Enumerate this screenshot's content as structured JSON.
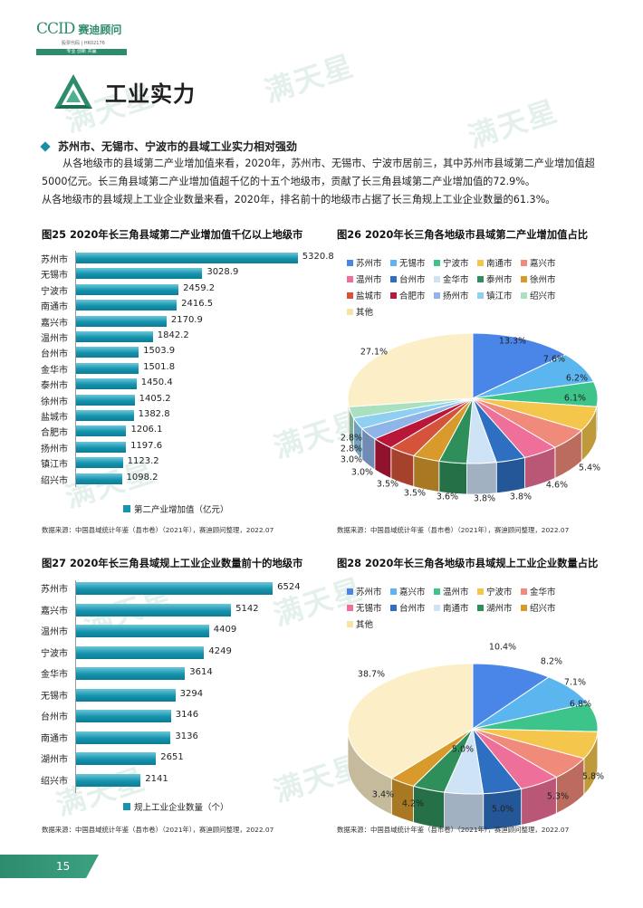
{
  "header": {
    "logo_en": "CCID",
    "logo_cn": "赛迪顾问",
    "logo_sub": "股票代码 | HK02176",
    "logo_tag": "专业 创新 共赢"
  },
  "watermark": "满天星",
  "section": {
    "title": "工业实力"
  },
  "subhead": "苏州市、无锡市、宁波市的县域工业实力相对强劲",
  "paragraphs": [
    "从各地级市的县域第二产业增加值来看，2020年，苏州市、无锡市、宁波市居前三，其中苏州市县域第二产业增加值超5000亿元。长三角县域第二产业增加值超千亿的十五个地级市，贡献了长三角县域第二产业增加值的72.9%。",
    "从各地级市的县域规上工业企业数量来看，2020年，排名前十的地级市占据了长三角规上工业企业数量的61.3%。"
  ],
  "fig25": {
    "title": "图25  2020年长三角县域第二产业增加值千亿以上地级市",
    "source": "数据来源：中国县域统计年鉴（县市卷）（2021年），赛迪顾问整理，2022.07",
    "chart_data": {
      "type": "bar",
      "orientation": "horizontal",
      "categories": [
        "苏州市",
        "无锡市",
        "宁波市",
        "南通市",
        "嘉兴市",
        "温州市",
        "台州市",
        "金华市",
        "泰州市",
        "徐州市",
        "盐城市",
        "合肥市",
        "扬州市",
        "镇江市",
        "绍兴市"
      ],
      "values": [
        "5320.8",
        "3028.9",
        "2459.2",
        "2416.5",
        "2170.9",
        "1842.2",
        "1503.9",
        "1501.8",
        "1450.4",
        "1405.2",
        "1382.8",
        "1206.1",
        "1197.6",
        "1123.2",
        "1098.2"
      ],
      "series_name": "第二产业增加值（亿元）",
      "xlim": [
        0,
        5500
      ]
    }
  },
  "fig26": {
    "title": "图26  2020年长三角各地级市县域第二产业增加值占比",
    "source": "数据来源：中国县域统计年鉴（县市卷）（2021年），赛迪顾问整理，2022.07",
    "chart_data": {
      "type": "pie",
      "style": "3d",
      "slices": [
        {
          "name": "苏州市",
          "value": 13.3,
          "label": "13.3%",
          "color": "#4a86e8"
        },
        {
          "name": "无锡市",
          "value": 7.6,
          "label": "7.6%",
          "color": "#5bb5ee"
        },
        {
          "name": "宁波市",
          "value": 6.2,
          "label": "6.2%",
          "color": "#3cc48a"
        },
        {
          "name": "南通市",
          "value": 6.1,
          "label": "6.1%",
          "color": "#f5c64c"
        },
        {
          "name": "嘉兴市",
          "value": 5.4,
          "label": "5.4%",
          "color": "#f08a7a"
        },
        {
          "name": "温州市",
          "value": 4.6,
          "label": "4.6%",
          "color": "#ee6f99"
        },
        {
          "name": "台州市",
          "value": 3.8,
          "label": "3.8%",
          "color": "#2e6fc2"
        },
        {
          "name": "金华市",
          "value": 3.8,
          "label": "3.8%",
          "color": "#cfe3f7"
        },
        {
          "name": "泰州市",
          "value": 3.6,
          "label": "3.6%",
          "color": "#2f8f5a"
        },
        {
          "name": "徐州市",
          "value": 3.5,
          "label": "3.5%",
          "color": "#d89a2b"
        },
        {
          "name": "盐城市",
          "value": 3.5,
          "label": "3.5%",
          "color": "#d5533a"
        },
        {
          "name": "合肥市",
          "value": 3.0,
          "label": "3.0%",
          "color": "#b8173a"
        },
        {
          "name": "扬州市",
          "value": 3.0,
          "label": "3.0%",
          "color": "#8fb4e8"
        },
        {
          "name": "镇江市",
          "value": 2.8,
          "label": "2.8%",
          "color": "#8fd0f2"
        },
        {
          "name": "绍兴市",
          "value": 2.8,
          "label": "2.8%",
          "color": "#a8e0c0"
        },
        {
          "name": "其他",
          "value": 27.1,
          "label": "27.1%",
          "color": "#fcefc8"
        }
      ]
    }
  },
  "fig27": {
    "title": "图27  2020年长三角县域规上工业企业数量前十的地级市",
    "source": "数据来源：中国县域统计年鉴（县市卷）（2021年），赛迪顾问整理，2022.07",
    "chart_data": {
      "type": "bar",
      "orientation": "horizontal",
      "categories": [
        "苏州市",
        "嘉兴市",
        "温州市",
        "宁波市",
        "金华市",
        "无锡市",
        "台州市",
        "南通市",
        "湖州市",
        "绍兴市"
      ],
      "values": [
        "6524",
        "5142",
        "4409",
        "4249",
        "3614",
        "3294",
        "3146",
        "3136",
        "2651",
        "2141"
      ],
      "series_name": "规上工业企业数量（个）",
      "xlim": [
        0,
        7000
      ]
    }
  },
  "fig28": {
    "title": "图28  2020年长三角各地级市县域规上工业企业数量占比",
    "source": "数据来源：中国县域统计年鉴（县市卷）（2021年），赛迪顾问整理，2022.07",
    "chart_data": {
      "type": "pie",
      "style": "3d",
      "slices": [
        {
          "name": "苏州市",
          "value": 10.4,
          "label": "10.4%",
          "color": "#4a86e8"
        },
        {
          "name": "嘉兴市",
          "value": 8.2,
          "label": "8.2%",
          "color": "#5bb5ee"
        },
        {
          "name": "温州市",
          "value": 7.1,
          "label": "7.1%",
          "color": "#3cc48a"
        },
        {
          "name": "宁波市",
          "value": 6.8,
          "label": "6.8%",
          "color": "#f5c64c"
        },
        {
          "name": "金华市",
          "value": 5.8,
          "label": "5.8%",
          "color": "#f08a7a"
        },
        {
          "name": "无锡市",
          "value": 5.3,
          "label": "5.3%",
          "color": "#ee6f99"
        },
        {
          "name": "台州市",
          "value": 5.0,
          "label": "5.0%",
          "color": "#2e6fc2"
        },
        {
          "name": "南通市",
          "value": 5.0,
          "label": "5.0%",
          "color": "#cfe3f7"
        },
        {
          "name": "湖州市",
          "value": 4.2,
          "label": "4.2%",
          "color": "#2f8f5a"
        },
        {
          "name": "绍兴市",
          "value": 3.4,
          "label": "3.4%",
          "color": "#d89a2b"
        },
        {
          "name": "其他",
          "value": 38.7,
          "label": "38.7%",
          "color": "#fcefc8"
        }
      ]
    }
  },
  "footer": {
    "page_number": "15"
  }
}
